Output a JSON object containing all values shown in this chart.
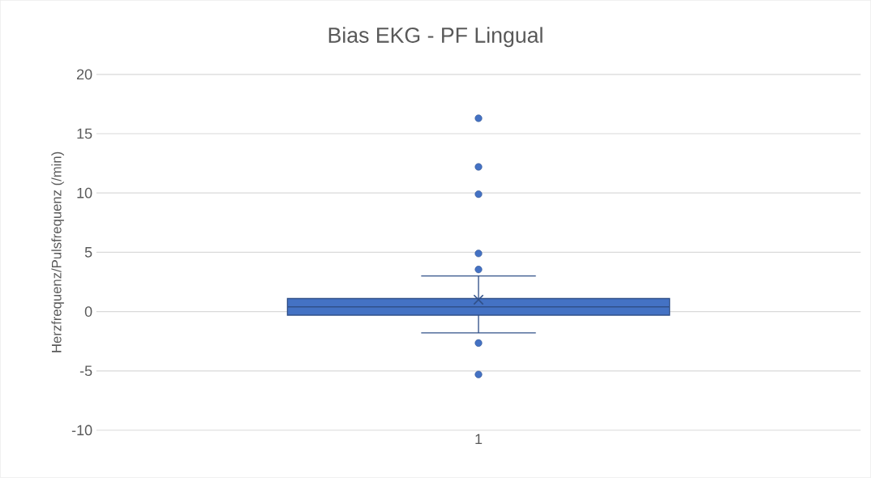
{
  "chart_data": {
    "type": "box",
    "title": "Bias EKG - PF Lingual",
    "ylabel": "Herzfrequenz/Pulsfrequenz (/min)",
    "categories": [
      "1"
    ],
    "color": "#4472c4",
    "boxes": [
      {
        "low": -1.8,
        "q1": -0.3,
        "median": 0.4,
        "q3": 1.1,
        "high": 3.0,
        "mean": 1.0,
        "outliers": [
          16.3,
          12.2,
          9.9,
          4.9,
          3.55,
          -2.65,
          -5.3
        ]
      }
    ],
    "ylim": [
      -10,
      20
    ],
    "yticks": [
      -10,
      -5,
      0,
      5,
      10,
      15,
      20
    ],
    "grid": "y"
  }
}
